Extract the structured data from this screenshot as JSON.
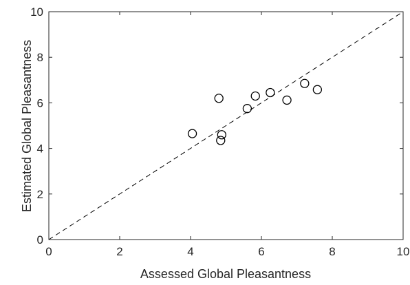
{
  "chart_data": {
    "type": "scatter",
    "title": "",
    "xlabel": "Assessed Global Pleasantness",
    "ylabel": "Estimated Global Pleasantness",
    "xlim": [
      0,
      10
    ],
    "ylim": [
      0,
      10
    ],
    "x_ticks": [
      "0",
      "2",
      "4",
      "6",
      "8",
      "10"
    ],
    "y_ticks": [
      "0",
      "2",
      "4",
      "6",
      "8",
      "10"
    ],
    "grid": false,
    "marker": "open-circle",
    "marker_color": "#000000",
    "reference_line": {
      "style": "dashed",
      "from": [
        0,
        0
      ],
      "to": [
        10,
        10
      ]
    },
    "points": [
      {
        "x": 4.05,
        "y": 4.65
      },
      {
        "x": 4.8,
        "y": 6.2
      },
      {
        "x": 4.85,
        "y": 4.35
      },
      {
        "x": 4.88,
        "y": 4.6
      },
      {
        "x": 5.6,
        "y": 5.75
      },
      {
        "x": 5.83,
        "y": 6.3
      },
      {
        "x": 6.25,
        "y": 6.45
      },
      {
        "x": 6.72,
        "y": 6.12
      },
      {
        "x": 7.22,
        "y": 6.85
      },
      {
        "x": 7.58,
        "y": 6.58
      }
    ]
  }
}
